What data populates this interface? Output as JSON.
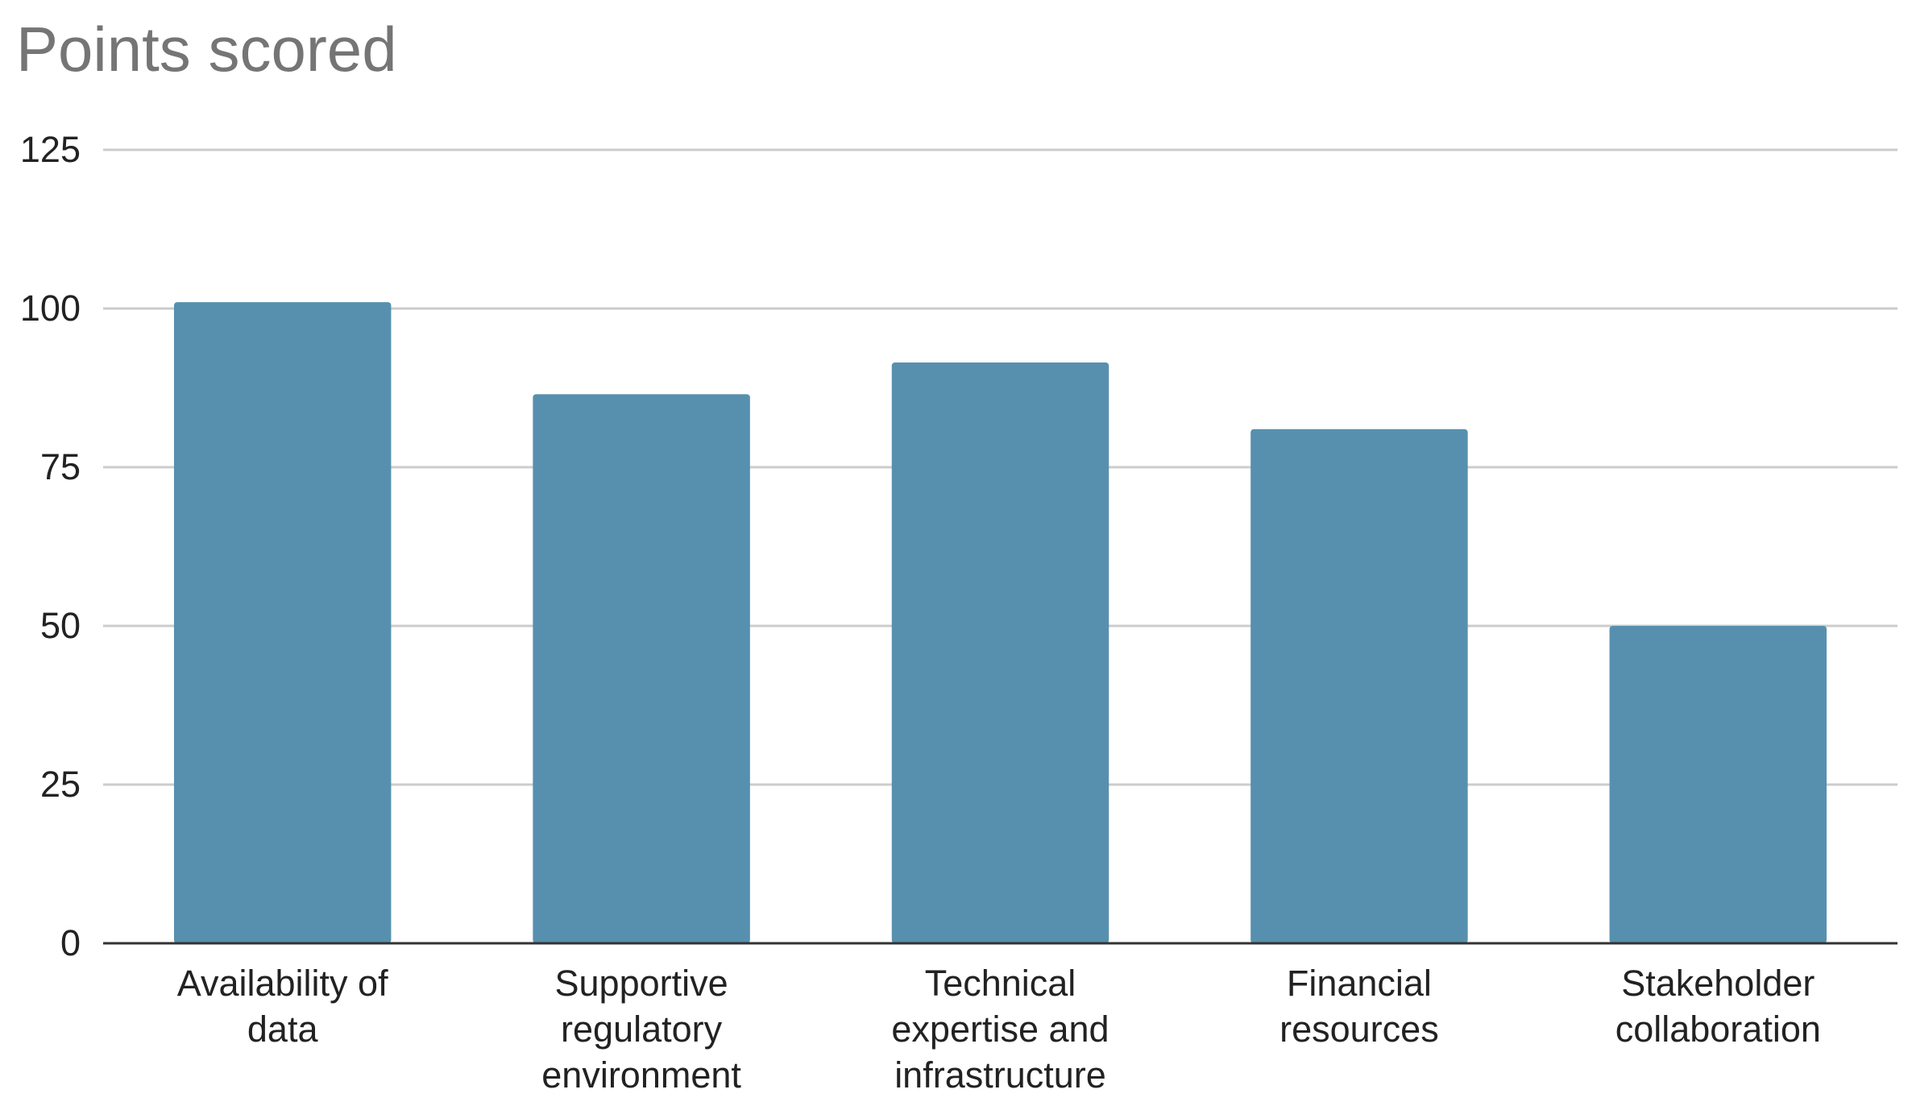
{
  "chart_data": {
    "type": "bar",
    "title": "Points scored",
    "xlabel": "",
    "ylabel": "",
    "categories": [
      "Availability of data",
      "Supportive regulatory environment",
      "Technical expertise and infrastructure",
      "Financial resources",
      "Stakeholder collaboration"
    ],
    "category_label_lines": [
      [
        "Availability of",
        "data"
      ],
      [
        "Supportive",
        "regulatory",
        "environment"
      ],
      [
        "Technical",
        "expertise and",
        "infrastructure"
      ],
      [
        "Financial",
        "resources"
      ],
      [
        "Stakeholder",
        "collaboration"
      ]
    ],
    "values": [
      101,
      86.5,
      91.5,
      81,
      50
    ],
    "ylim": [
      0,
      125
    ],
    "yticks": [
      0,
      25,
      50,
      75,
      100,
      125
    ],
    "grid": true,
    "legend": "none",
    "colors": {
      "bar": "#5790ae",
      "grid": "#cccccc",
      "axis": "#333333",
      "title": "#757575",
      "text": "#222222"
    }
  }
}
